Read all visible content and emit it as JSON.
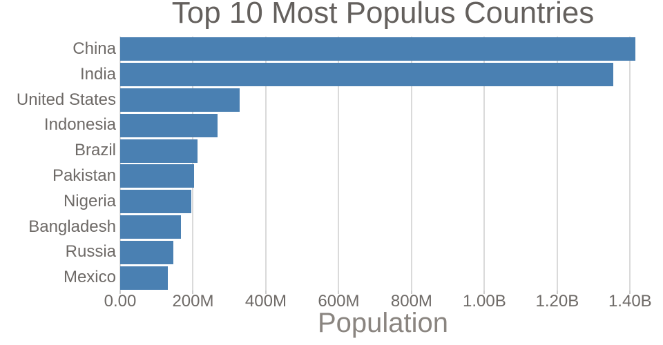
{
  "colors": {
    "bar": "#4a80b2",
    "grid": "#dadada",
    "tick_mark": "#cccccc",
    "title_text": "#64605d",
    "tick_text": "#6e6a67",
    "axis_title_text": "#8a8580",
    "background": "#ffffff"
  },
  "chart_data": {
    "type": "bar",
    "orientation": "horizontal",
    "title": "Top 10 Most Populus Countries",
    "xlabel": "Population",
    "ylabel": "",
    "legend": "none",
    "grid": "vertical-only",
    "categories": [
      "China",
      "India",
      "United States",
      "Indonesia",
      "Brazil",
      "Pakistan",
      "Nigeria",
      "Bangladesh",
      "Russia",
      "Mexico"
    ],
    "values": [
      1414000000,
      1353000000,
      328000000,
      268000000,
      213000000,
      203000000,
      196000000,
      167000000,
      146000000,
      131000000
    ],
    "x_axis": {
      "min": 0,
      "max": 1443000000,
      "ticks": [
        {
          "value": 0,
          "label": "0.00"
        },
        {
          "value": 200000000,
          "label": "200M"
        },
        {
          "value": 400000000,
          "label": "400M"
        },
        {
          "value": 600000000,
          "label": "600M"
        },
        {
          "value": 800000000,
          "label": "800M"
        },
        {
          "value": 1000000000,
          "label": "1.00B"
        },
        {
          "value": 1200000000,
          "label": "1.20B"
        },
        {
          "value": 1400000000,
          "label": "1.40B"
        }
      ]
    }
  }
}
